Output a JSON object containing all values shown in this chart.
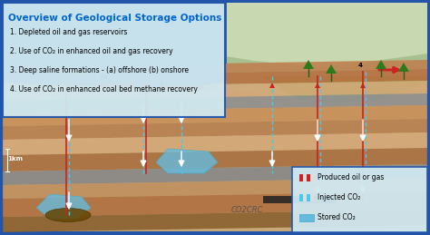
{
  "title": "Overview of Geological Storage Options",
  "title_color": "#0066cc",
  "bg_color": "#c8dce8",
  "items": [
    "1. Depleted oil and gas reservoirs",
    "2. Use of CO₂ in enhanced oil and gas recovery",
    "3. Deep saline formations - (a) offshore (b) onshore",
    "4. Use of CO₂ in enhanced coal bed methane recovery"
  ],
  "legend_items": [
    {
      "label": "Produced oil or gas",
      "color1": "#cc2222",
      "color2": "#dddddd"
    },
    {
      "label": "Injected CO₂",
      "color1": "#44bbdd",
      "color2": "#dddddd"
    },
    {
      "label": "Stored CO₂",
      "color1": "#55aacc",
      "color2": "#55aacc"
    }
  ],
  "co2crc_text": "CO2CRC",
  "scale_text": "1km",
  "geo_bg": "#c8a878",
  "sea_color": "#2255aa",
  "sky_color": "#b8c8a0",
  "layer_colors": [
    "#c8905a",
    "#b07840",
    "#d4a878",
    "#888888",
    "#c8905a",
    "#b88850",
    "#d4a878"
  ],
  "border_color": "#2255aa",
  "box_bg": "#d0e8f0"
}
